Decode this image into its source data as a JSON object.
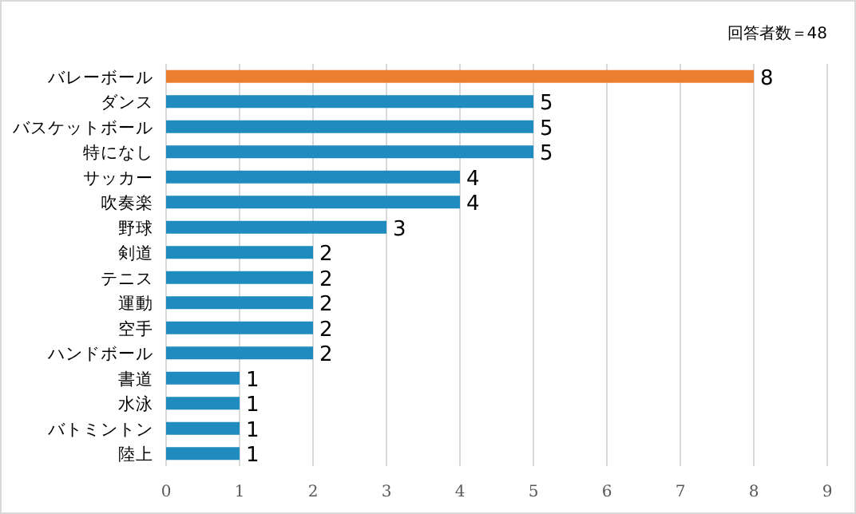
{
  "chart_data": {
    "type": "bar",
    "orientation": "horizontal",
    "annotations": [
      "回答者数＝48"
    ],
    "categories": [
      "バレーボール",
      "ダンス",
      "バスケットボール",
      "特になし",
      "サッカー",
      "吹奏楽",
      "野球",
      "剣道",
      "テニス",
      "運動",
      "空手",
      "ハンドボール",
      "書道",
      "水泳",
      "バトミントン",
      "陸上"
    ],
    "values": [
      8,
      5,
      5,
      5,
      4,
      4,
      3,
      2,
      2,
      2,
      2,
      2,
      1,
      1,
      1,
      1
    ],
    "colors": [
      "#ed7d31",
      "#1f8bbf",
      "#1f8bbf",
      "#1f8bbf",
      "#1f8bbf",
      "#1f8bbf",
      "#1f8bbf",
      "#1f8bbf",
      "#1f8bbf",
      "#1f8bbf",
      "#1f8bbf",
      "#1f8bbf",
      "#1f8bbf",
      "#1f8bbf",
      "#1f8bbf",
      "#1f8bbf"
    ],
    "xlim": [
      0,
      9
    ],
    "xticks": [
      0,
      1,
      2,
      3,
      4,
      5,
      6,
      7,
      8,
      9
    ],
    "grid": "x",
    "data_labels": true
  }
}
